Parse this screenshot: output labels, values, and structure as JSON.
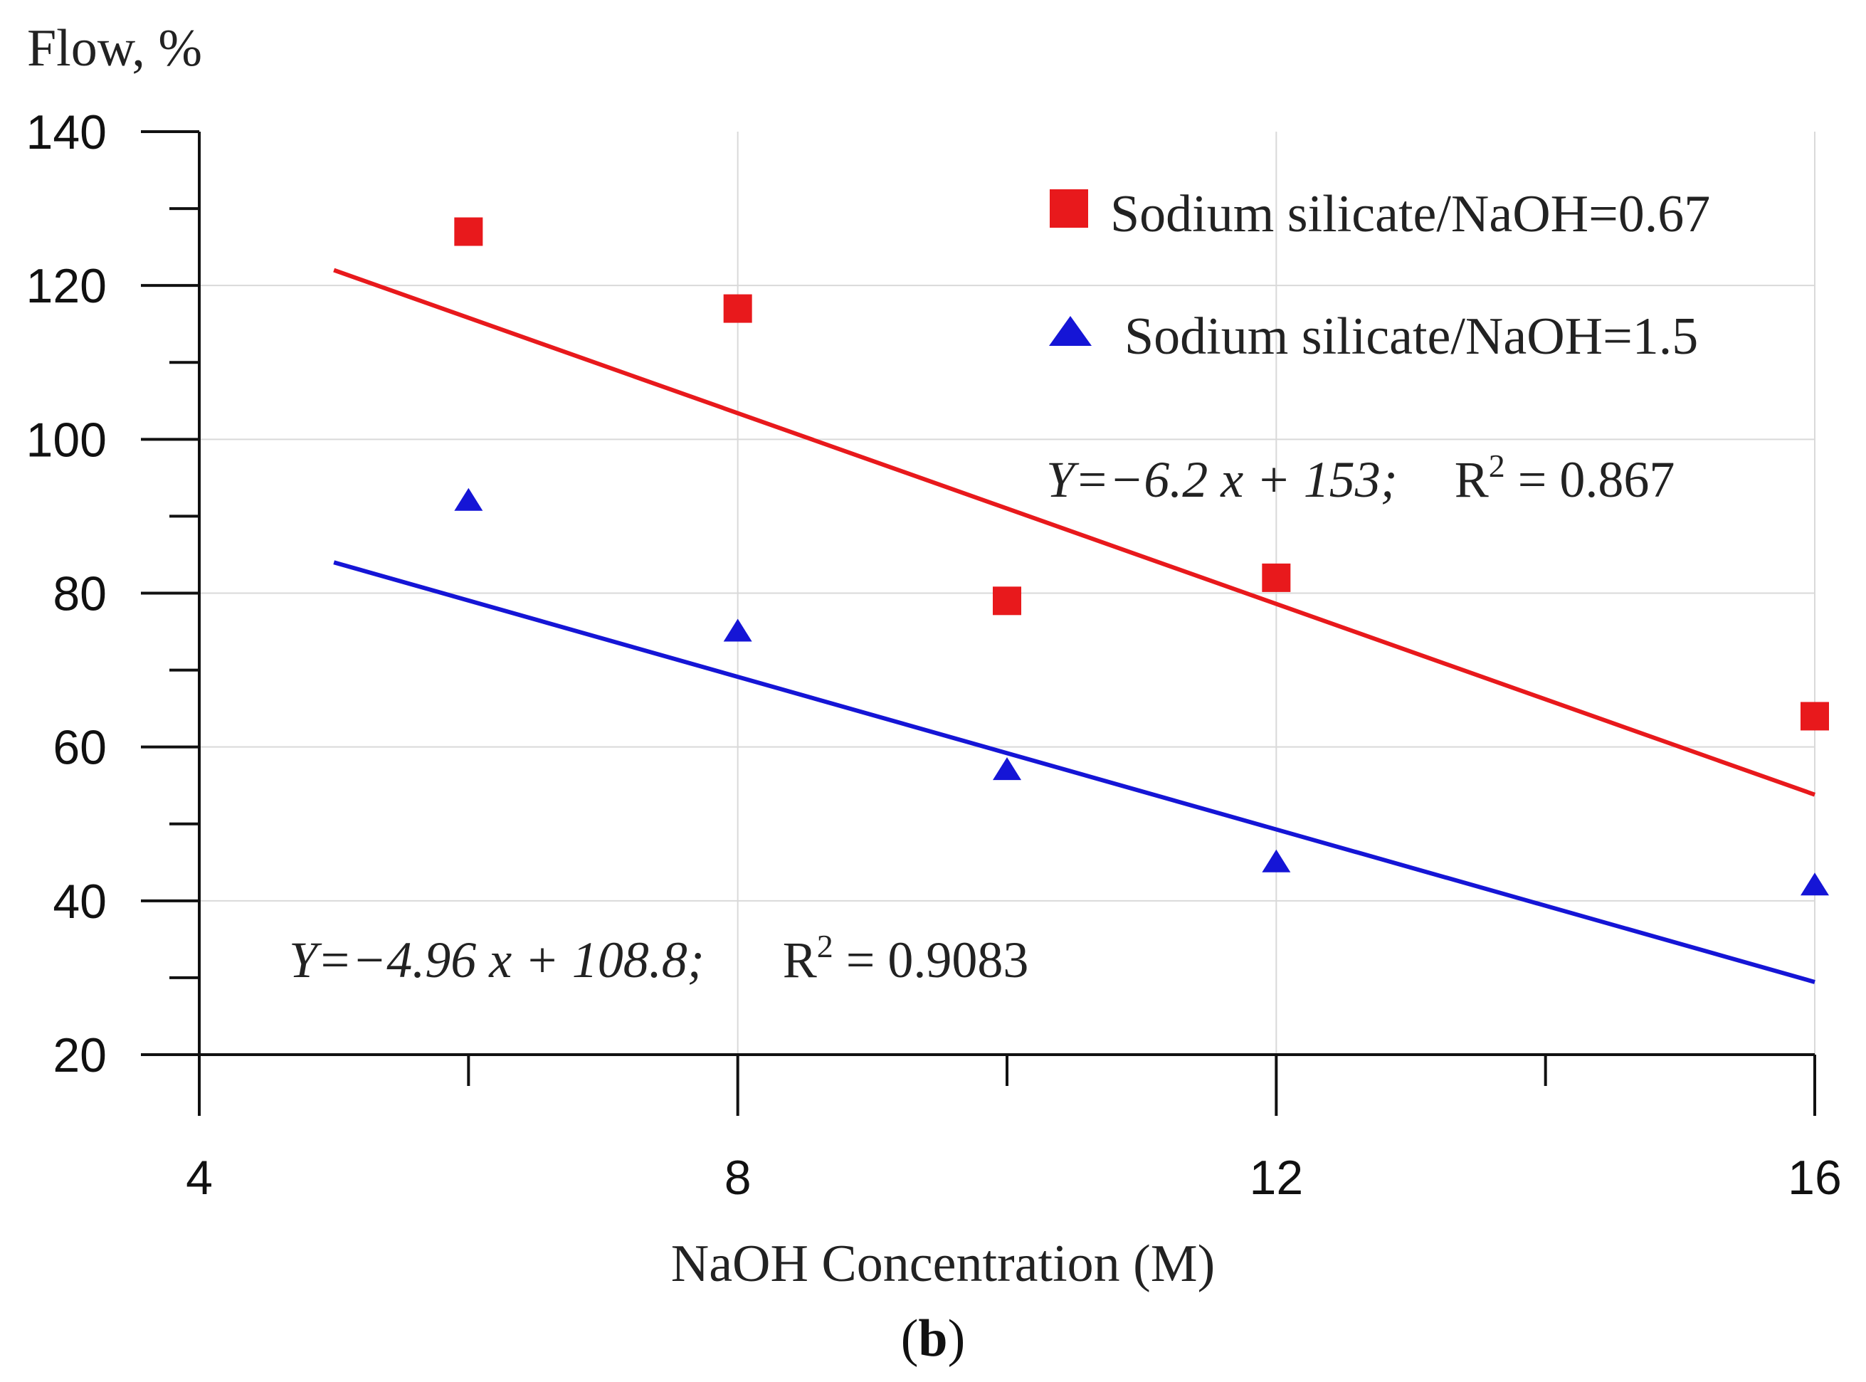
{
  "chart_data": {
    "type": "scatter",
    "title": "",
    "panel_label_open": "(",
    "panel_label_letter": "b",
    "panel_label_close": ")",
    "xlabel": "NaOH Concentration (M)",
    "ylabel": "Flow, %",
    "xlim": [
      4,
      16
    ],
    "ylim": [
      20,
      140
    ],
    "x_major_ticks": [
      4,
      8,
      12,
      16
    ],
    "x_minor_ticks": [
      6,
      10,
      14
    ],
    "x_tick_labels": [
      "4",
      "8",
      "12",
      "16"
    ],
    "y_major_ticks": [
      20,
      40,
      60,
      80,
      100,
      120,
      140
    ],
    "y_tick_labels": [
      "20",
      "40",
      "60",
      "80",
      "100",
      "120",
      "140"
    ],
    "y_minor_ticks": [
      30,
      50,
      70,
      90,
      110,
      130
    ],
    "x_grid": [
      8,
      12,
      16
    ],
    "y_grid": [
      40,
      60,
      80,
      100,
      120
    ],
    "legend_position": "top-right",
    "series": [
      {
        "name": "Sodium silicate/NaOH=0.67",
        "marker": "square",
        "color": "#e8191c",
        "x": [
          6,
          8,
          10,
          12,
          16
        ],
        "y": [
          127,
          117,
          79,
          82,
          64
        ],
        "fit": {
          "slope": -6.2,
          "intercept": 153,
          "x_start": 5,
          "x_end": 16
        },
        "equation": {
          "y_eq": "Y=−6.2 x + 153;",
          "r2_label": "R",
          "r2_exp": "2",
          "r2_value": " = 0.867"
        }
      },
      {
        "name": "Sodium silicate/NaOH=1.5",
        "marker": "triangle",
        "color": "#1515d6",
        "x": [
          6,
          8,
          10,
          12,
          16
        ],
        "y": [
          92,
          75,
          57,
          45,
          42
        ],
        "fit": {
          "slope": -4.96,
          "intercept": 108.8,
          "x_start": 5,
          "x_end": 16
        },
        "equation": {
          "y_eq": "Y=−4.96 x + 108.8;",
          "r2_label": "R",
          "r2_exp": "2",
          "r2_value": " = 0.9083"
        }
      }
    ]
  }
}
